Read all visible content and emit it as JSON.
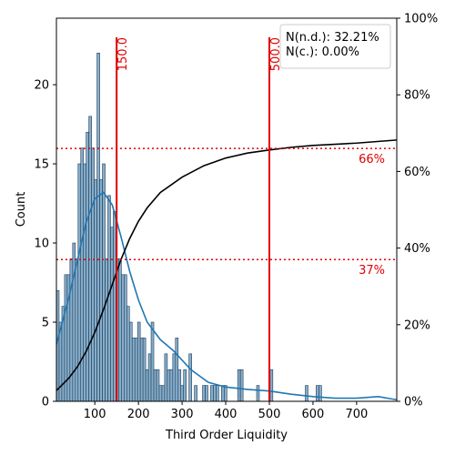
{
  "chart_data": {
    "type": "histogram",
    "xlabel": "Third Order Liquidity",
    "ylabel": "Count",
    "xlim": [
      12,
      792
    ],
    "ylim": [
      0,
      24.2
    ],
    "y2lim": [
      0,
      100
    ],
    "x_ticks": [
      "100",
      "200",
      "300",
      "400",
      "500",
      "600",
      "700"
    ],
    "x_tick_values": [
      100,
      200,
      300,
      400,
      500,
      600,
      700
    ],
    "y_ticks": [
      "0",
      "5",
      "10",
      "15",
      "20"
    ],
    "y_tick_values": [
      0,
      5,
      10,
      15,
      20
    ],
    "y2_ticks": [
      "0%",
      "20%",
      "40%",
      "60%",
      "80%",
      "100%"
    ],
    "y2_tick_values": [
      0,
      20,
      40,
      60,
      80,
      100
    ],
    "bins": {
      "start": 12,
      "width": 6.2,
      "counts": [
        7,
        5,
        6,
        8,
        8,
        9,
        10,
        9,
        15,
        16,
        15,
        17,
        18,
        16,
        14,
        22,
        14,
        15,
        9,
        13,
        11,
        12,
        9,
        9,
        8,
        8,
        6,
        5,
        4,
        4,
        5,
        4,
        4,
        2,
        3,
        5,
        2,
        2,
        1,
        1,
        3,
        2,
        2,
        3,
        4,
        2,
        1,
        2,
        0,
        3,
        0,
        1,
        0,
        0,
        1,
        1,
        0,
        1,
        1,
        1,
        0,
        1,
        1,
        0,
        0,
        0,
        0,
        2,
        2,
        0,
        0,
        0,
        0,
        0,
        1,
        0,
        0,
        0,
        0,
        2,
        0,
        0,
        0,
        0,
        0,
        0,
        0,
        0,
        0,
        0,
        0,
        0,
        1,
        0,
        0,
        0,
        1,
        1,
        0,
        0,
        0,
        0,
        0,
        0,
        0,
        0,
        0,
        0,
        0,
        0,
        0,
        0,
        0,
        0,
        0,
        0,
        0,
        0,
        0,
        0,
        0,
        0,
        0,
        0,
        0,
        0,
        0,
        0,
        0,
        0
      ]
    },
    "kde": {
      "x": [
        12,
        40,
        60,
        80,
        100,
        120,
        140,
        160,
        180,
        200,
        220,
        250,
        280,
        320,
        360,
        400,
        450,
        500,
        550,
        600,
        650,
        700,
        750,
        780,
        792
      ],
      "y": [
        3.6,
        6.5,
        8.9,
        11.3,
        12.8,
        13.2,
        12.4,
        10.4,
        8.2,
        6.4,
        5.0,
        3.9,
        3.2,
        2.0,
        1.2,
        0.9,
        0.75,
        0.65,
        0.45,
        0.3,
        0.2,
        0.2,
        0.3,
        0.15,
        0.1
      ]
    },
    "cdf": {
      "x": [
        12,
        40,
        60,
        80,
        100,
        120,
        140,
        160,
        180,
        200,
        220,
        250,
        300,
        350,
        400,
        450,
        500,
        550,
        600,
        700,
        792
      ],
      "y": [
        2.8,
        6.0,
        9.0,
        13.0,
        18.0,
        24.0,
        30.5,
        37.0,
        42.5,
        47.0,
        50.5,
        54.5,
        58.5,
        61.5,
        63.5,
        64.8,
        65.6,
        66.3,
        66.8,
        67.4,
        68.2
      ]
    },
    "vlines": [
      {
        "x": 150,
        "label": "150.0"
      },
      {
        "x": 500,
        "label": "500.0"
      }
    ],
    "hlines": [
      {
        "pct": 66,
        "label": "66%"
      },
      {
        "pct": 37,
        "label": "37%"
      }
    ],
    "legend": {
      "lines": [
        "N(n.d.): 32.21%",
        "N(c.): 0.00%"
      ],
      "placement": "top-right"
    },
    "colors": {
      "bar_fill": "#86aecb",
      "bar_edge": "#1f3a55",
      "kde": "#1f77b4",
      "cdf": "#000000",
      "ref": "#e00000"
    }
  }
}
